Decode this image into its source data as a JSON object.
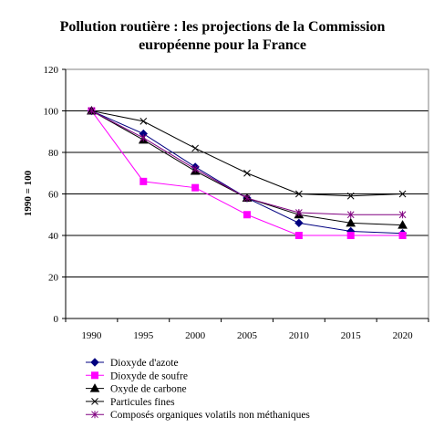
{
  "chart_data": {
    "type": "line",
    "title": [
      "Pollution routière : les projections de la Commission",
      "européenne pour la France"
    ],
    "ylabel": "1990 = 100",
    "xlabel": "",
    "ylim": [
      0,
      120
    ],
    "yticks": [
      0,
      20,
      40,
      60,
      80,
      100,
      120
    ],
    "grid": true,
    "legend_position": "bottom",
    "categories": [
      "1990",
      "1995",
      "2000",
      "2005",
      "2010",
      "2015",
      "2020"
    ],
    "series": [
      {
        "name": "Dioxyde d'azote",
        "values": [
          100,
          89,
          73,
          58,
          46,
          42,
          41
        ],
        "color": "#000080",
        "marker": "diamond"
      },
      {
        "name": "Dioxyde de soufre",
        "values": [
          100,
          66,
          63,
          50,
          40,
          40,
          40
        ],
        "color": "#FF00FF",
        "marker": "square"
      },
      {
        "name": "Oxyde de carbone",
        "values": [
          100,
          86,
          71,
          58,
          50,
          46,
          45
        ],
        "color": "#000000",
        "marker": "triangle"
      },
      {
        "name": "Particules fines",
        "values": [
          100,
          95,
          82,
          70,
          60,
          59,
          60
        ],
        "color": "#000000",
        "marker": "x"
      },
      {
        "name": "Composés organiques volatils non méthaniques",
        "values": [
          100,
          87,
          72,
          58,
          51,
          50,
          50
        ],
        "color": "#800080",
        "marker": "star"
      }
    ]
  }
}
